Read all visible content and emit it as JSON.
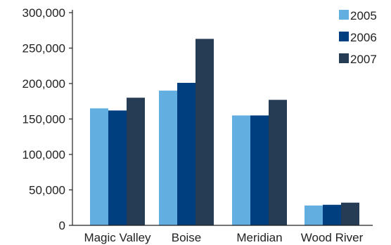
{
  "chart_data": {
    "type": "bar",
    "categories": [
      "Magic Valley",
      "Boise",
      "Meridian",
      "Wood River"
    ],
    "series": [
      {
        "name": "2005",
        "color": "#62aee0",
        "values": [
          165000,
          190000,
          155000,
          28000
        ]
      },
      {
        "name": "2006",
        "color": "#003f7f",
        "values": [
          162000,
          201000,
          155000,
          29000
        ]
      },
      {
        "name": "2007",
        "color": "#263c55",
        "values": [
          180000,
          263000,
          177000,
          32000
        ]
      }
    ],
    "ylim": [
      0,
      300000
    ],
    "yticks": [
      0,
      50000,
      100000,
      150000,
      200000,
      250000,
      300000
    ],
    "ytick_labels": [
      "0",
      "50,000",
      "100,000",
      "150,000",
      "200,000",
      "250,000",
      "300,000"
    ],
    "grid": false,
    "legend_position": "top-right",
    "title": "",
    "xlabel": "",
    "ylabel": ""
  }
}
